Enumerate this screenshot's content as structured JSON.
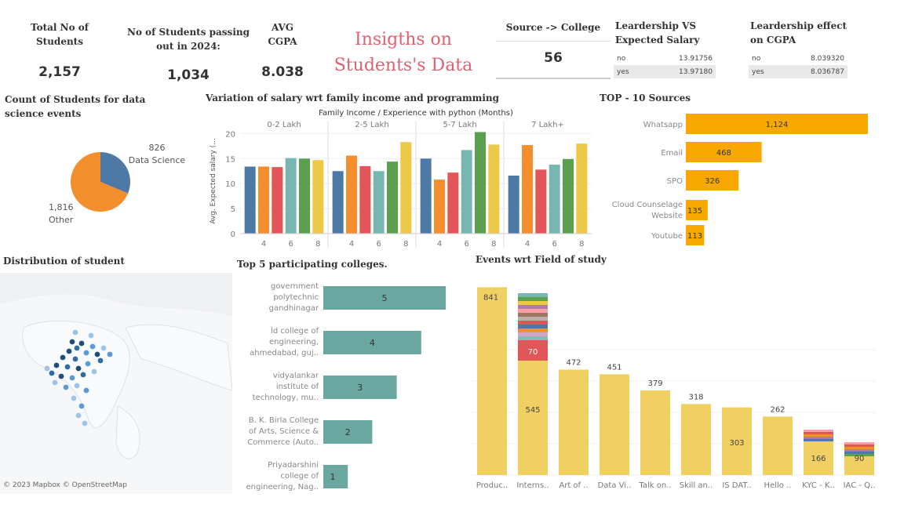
{
  "kpis": {
    "total_students": {
      "label": "Total No of Students",
      "value": "2,157"
    },
    "passing_2024": {
      "label": "No of Students passing out in 2024:",
      "value": "1,034"
    },
    "avg_cgpa": {
      "label": "AVG CGPA",
      "value": "8.038"
    },
    "source_college": {
      "label": "Source -> College",
      "value": "56"
    }
  },
  "dashboard_title": "Insigths on Students's Data",
  "colors": {
    "blue": "#4e79a7",
    "orange": "#f28e2b",
    "red": "#e15759",
    "teal": "#76b7b2",
    "green": "#59a14f",
    "yellow": "#edc948",
    "amber": "#f8a800",
    "map_teal": "#6aa7a0",
    "field_yellow": "#f0cf63",
    "title_red": "#e06070"
  },
  "leadership_salary": {
    "title": "Leardership VS Expected Salary",
    "rows": [
      {
        "label": "no",
        "value": "13.91756"
      },
      {
        "label": "yes",
        "value": "13.97180"
      }
    ]
  },
  "leadership_cgpa": {
    "title": "Leardership effect on CGPA",
    "rows": [
      {
        "label": "no",
        "value": "8.039320"
      },
      {
        "label": "yes",
        "value": "8.036787"
      }
    ]
  },
  "pie": {
    "title": "Count of Students for data science events",
    "slices": [
      {
        "label": "Data Science",
        "value": 826,
        "value_text": "826"
      },
      {
        "label": "Other",
        "value": 1816,
        "value_text": "1,816"
      }
    ]
  },
  "salary_chart": {
    "title": "Variation of salary wrt family income and programming",
    "header": "Family Income  /  Experience with python (Months)",
    "ylabel": "Avg. Expected salary (..."
  },
  "sources": {
    "title": "TOP - 10  Sources"
  },
  "colleges": {
    "title": "Top 5 participating colleges."
  },
  "fields": {
    "title": "Events wrt Field of study"
  },
  "map": {
    "title": "Distribution of student",
    "attribution": "© 2023 Mapbox © OpenStreetMap"
  },
  "chart_data": [
    {
      "type": "pie",
      "title": "Count of Students for data science events",
      "categories": [
        "Data Science",
        "Other"
      ],
      "values": [
        826,
        1816
      ]
    },
    {
      "type": "bar",
      "title": "Variation of salary wrt family income and programming",
      "xlabel": "Experience with python (Months)",
      "ylabel": "Avg. Expected salary (...",
      "ylim": [
        0,
        21
      ],
      "yticks": [
        0,
        5,
        10,
        15,
        20
      ],
      "groups": [
        {
          "name": "0-2 Lakh",
          "values": [
            13.4,
            13.4,
            13.3,
            15.1,
            15.0,
            14.7
          ]
        },
        {
          "name": "2-5 Lakh",
          "values": [
            12.5,
            15.6,
            13.5,
            12.5,
            14.4,
            18.3
          ]
        },
        {
          "name": "5-7 Lakh",
          "values": [
            15.0,
            10.8,
            12.2,
            16.7,
            20.3,
            17.8
          ]
        },
        {
          "name": "7 Lakh+",
          "values": [
            11.6,
            17.7,
            12.8,
            13.8,
            14.9,
            18.0
          ]
        }
      ],
      "xticks": [
        "4",
        "6",
        "8"
      ]
    },
    {
      "type": "bar",
      "title": "TOP - 10  Sources",
      "categories": [
        "Whatsapp",
        "Email",
        "SPO",
        "Cloud Counselage Website",
        "Youtube"
      ],
      "values": [
        1124,
        468,
        326,
        135,
        113
      ],
      "labels": [
        "1,124",
        "468",
        "326",
        "135",
        "113"
      ]
    },
    {
      "type": "bar",
      "title": "Top 5 participating colleges.",
      "categories": [
        "government polytechnic gandhinagar",
        "ld college of engineering, ahmedabad, guj..",
        "vidyalankar institute of technology, mu..",
        "B. K. Birla College of Arts, Science & Commerce (Auto..",
        "Priyadarshini college of engineering, Nag.."
      ],
      "values": [
        5,
        4,
        3,
        2,
        1
      ]
    },
    {
      "type": "bar",
      "title": "Events wrt Field of study",
      "categories": [
        "Produc..",
        "Interns..",
        "Art of ..",
        "Data Vi..",
        "Talk on..",
        "Skill an..",
        "IS DAT..",
        "Hello ..",
        "KYC - K..",
        "IAC - Q.."
      ],
      "values": [
        841,
        545,
        472,
        451,
        379,
        318,
        303,
        262,
        166,
        90
      ],
      "labels_top": [
        "841",
        "",
        "472",
        "451",
        "379",
        "318",
        "",
        "262",
        "",
        ""
      ],
      "labels_inner": [
        "",
        "545",
        "",
        "",
        "",
        "",
        "303",
        "",
        "166",
        "90"
      ],
      "stack_label": "70"
    }
  ]
}
